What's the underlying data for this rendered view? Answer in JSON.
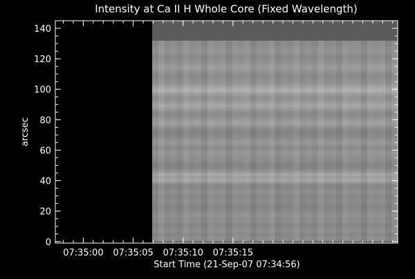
{
  "chart_data": {
    "type": "heatmap",
    "title": "Intensity at Ca II H Whole Core (Fixed Wavelength)",
    "xlabel": "Start Time (21-Sep-07 07:34:56)",
    "ylabel": "arcsec",
    "x_axis": {
      "unit": "seconds since 07:34:56",
      "range": [
        1.2,
        35.5
      ],
      "ticks": [
        {
          "value": 4,
          "label": "07:35:00"
        },
        {
          "value": 9,
          "label": "07:35:05"
        },
        {
          "value": 14,
          "label": "07:35:10"
        },
        {
          "value": 19,
          "label": "07:35:15"
        }
      ],
      "minor_step": 1
    },
    "y_axis": {
      "range": [
        -1,
        145
      ],
      "ticks": [
        0,
        20,
        40,
        60,
        80,
        100,
        120,
        140
      ],
      "minor_step": 5
    },
    "data_region": {
      "x_start": 10.9,
      "x_end": 35.5,
      "y_start": 0,
      "y_end": 132,
      "top_block_y_end": 145
    },
    "colors": {
      "background": "#000000",
      "axes": "#ffffff",
      "top_block": "#5a5a5a",
      "fill_base": "#8a8a8a"
    },
    "row_grays": [
      138,
      140,
      142,
      139,
      136,
      137,
      141,
      143,
      140,
      138,
      135,
      137,
      139,
      141,
      142,
      140,
      144,
      146,
      143,
      140,
      137,
      135,
      133,
      134,
      136,
      138,
      140,
      139,
      137,
      136,
      138,
      141,
      143,
      142,
      139,
      136,
      134,
      137,
      145,
      160,
      168,
      162,
      158,
      164,
      166,
      157,
      148,
      140,
      136,
      133,
      132,
      135,
      138,
      141,
      143,
      144,
      146,
      149,
      151,
      148,
      142,
      139,
      141,
      145,
      150,
      153,
      149,
      144,
      140,
      137,
      135,
      134,
      133,
      136,
      140,
      146,
      152,
      158,
      160,
      156,
      150,
      145,
      142,
      140,
      138,
      142,
      150,
      157,
      162,
      166,
      163,
      157,
      151,
      148,
      146,
      149,
      154,
      161,
      170,
      176,
      172,
      165,
      158,
      152,
      148,
      145,
      143,
      141,
      140,
      139,
      142,
      146,
      150,
      154,
      157,
      155,
      151,
      147,
      144,
      142,
      140,
      139,
      141,
      144,
      147,
      149,
      147,
      144,
      142,
      141,
      140,
      141
    ]
  }
}
